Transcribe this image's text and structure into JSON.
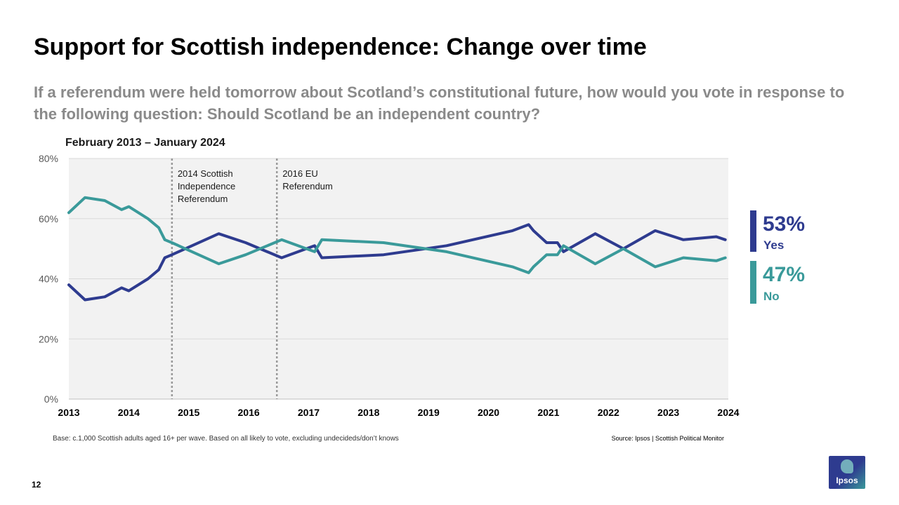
{
  "page": {
    "title": "Support for Scottish independence: Change over time",
    "question": "If a referendum were held tomorrow about Scotland’s constitutional future, how would you vote in response to the following question: Should Scotland be an independent country?",
    "date_range": "February 2013 – January 2024",
    "base_note": "Base: c.1,000 Scottish adults aged 16+ per wave. Based on all likely to vote, excluding undecideds/don’t knows",
    "source_note": "Source: Ipsos | Scottish Political Monitor",
    "page_number": "12",
    "logo_text": "Ipsos"
  },
  "legend": {
    "yes": {
      "pct": "53%",
      "label": "Yes"
    },
    "no": {
      "pct": "47%",
      "label": "No"
    }
  },
  "colors": {
    "yes": "#2e3b8f",
    "no": "#3a9a9a",
    "plot_bg": "#f2f2f2",
    "grid": "#d9d9d9",
    "event_line": "#9a9a9a"
  },
  "chart_data": {
    "type": "line",
    "title": "Support for Scottish independence: Change over time",
    "x_range": [
      2013,
      2024
    ],
    "ylim": [
      0,
      80
    ],
    "y_ticks": [
      0,
      20,
      40,
      60,
      80
    ],
    "y_tick_labels": [
      "0%",
      "20%",
      "40%",
      "60%",
      "80%"
    ],
    "x_ticks": [
      2013,
      2014,
      2015,
      2016,
      2017,
      2018,
      2019,
      2020,
      2021,
      2022,
      2023,
      2024
    ],
    "x_tick_labels": [
      "2013",
      "2014",
      "2015",
      "2016",
      "2017",
      "2018",
      "2019",
      "2020",
      "2021",
      "2022",
      "2023",
      "2024"
    ],
    "grid": true,
    "events": [
      {
        "x": 2014.72,
        "label_lines": [
          "2014 Scottish",
          "Independence",
          "Referendum"
        ]
      },
      {
        "x": 2016.47,
        "label_lines": [
          "2016 EU",
          "Referendum"
        ]
      }
    ],
    "series": [
      {
        "name": "Yes",
        "x": [
          2013.0,
          2013.27,
          2013.6,
          2013.88,
          2014.0,
          2014.32,
          2014.5,
          2014.6,
          2014.72,
          2015.5,
          2015.95,
          2016.55,
          2017.1,
          2017.22,
          2018.25,
          2019.3,
          2020.4,
          2020.67,
          2020.75,
          2020.97,
          2021.15,
          2021.25,
          2021.78,
          2022.25,
          2022.78,
          2023.25,
          2023.8,
          2023.95
        ],
        "y": [
          38,
          33,
          34,
          37,
          36,
          40,
          43,
          47,
          48,
          55,
          52,
          47,
          51,
          47,
          48,
          51,
          56,
          58,
          56,
          52,
          52,
          49,
          55,
          50,
          56,
          53,
          54,
          53
        ]
      },
      {
        "name": "No",
        "x": [
          2013.0,
          2013.27,
          2013.6,
          2013.88,
          2014.0,
          2014.32,
          2014.5,
          2014.6,
          2014.72,
          2015.5,
          2015.95,
          2016.55,
          2017.1,
          2017.22,
          2018.25,
          2019.3,
          2020.4,
          2020.67,
          2020.75,
          2020.97,
          2021.15,
          2021.25,
          2021.78,
          2022.25,
          2022.78,
          2023.25,
          2023.8,
          2023.95
        ],
        "y": [
          62,
          67,
          66,
          63,
          64,
          60,
          57,
          53,
          52,
          45,
          48,
          53,
          49,
          53,
          52,
          49,
          44,
          42,
          44,
          48,
          48,
          51,
          45,
          50,
          44,
          47,
          46,
          47
        ]
      }
    ]
  }
}
